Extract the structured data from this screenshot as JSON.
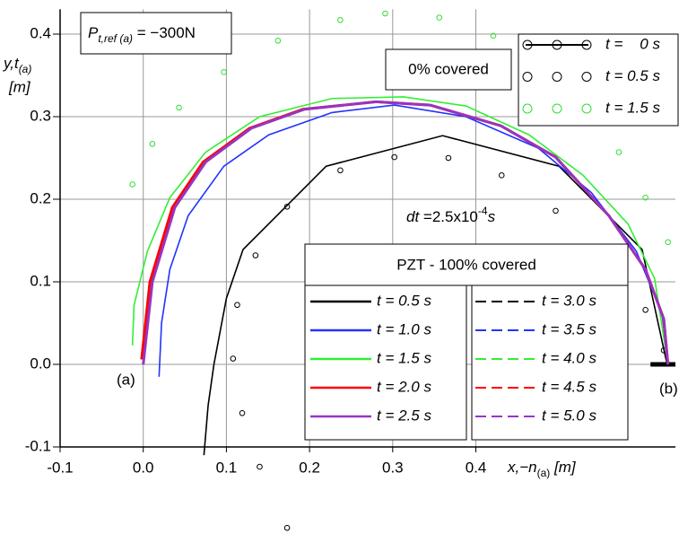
{
  "chart_data": {
    "type": "line",
    "annotation": {
      "main": "P",
      "sub": "t,ref (a)",
      "rest": " = −300N"
    },
    "dt_annotation": {
      "main": "dt",
      "rest": " =2.5x10",
      "sup": "-4",
      "unit": "s"
    },
    "x_label": {
      "main": "x,−n",
      "sub": "(a)",
      "unit": " [m]"
    },
    "y_label": {
      "main": "y,t",
      "sub": "(a)",
      "unit": "[m]"
    },
    "point_labels": [
      "(a)",
      "(b)"
    ],
    "xlim": [
      -0.1,
      0.64
    ],
    "ylim": [
      -0.1,
      0.43
    ],
    "xticks": [
      -0.1,
      {
        "value": 0,
        "label": "0.0"
      },
      0.1,
      0.2,
      0.3,
      0.4
    ],
    "yticks": [
      -0.1,
      {
        "value": 0,
        "label": "0.0"
      },
      0.1,
      0.2,
      0.3,
      0.4
    ],
    "grid": true,
    "series_groups": [
      {
        "title": "0% covered",
        "series": [
          {
            "name": "t =    0 s",
            "color": "#000000",
            "style": "line+markers",
            "x": [
              0.61,
              0.625,
              0.64
            ],
            "y": [
              0,
              0,
              0
            ]
          },
          {
            "name": "t = 0.5 s",
            "color": "#000000",
            "style": "markers",
            "x": [
              0.173,
              0.14,
              0.119,
              0.108,
              0.113,
              0.135,
              0.173,
              0.237,
              0.302,
              0.367,
              0.431,
              0.496,
              0.561,
              0.604,
              0.626
            ],
            "y": [
              -0.198,
              -0.124,
              -0.059,
              0.007,
              0.072,
              0.132,
              0.191,
              0.235,
              0.251,
              0.25,
              0.229,
              0.186,
              0.126,
              0.066,
              0.017
            ]
          },
          {
            "name": "t = 1.5 s",
            "color": "#33dd33",
            "style": "markers",
            "x": [
              -0.013,
              0.011,
              0.043,
              0.097,
              0.162,
              0.237,
              0.291,
              0.356,
              0.421,
              0.475,
              0.529,
              0.572,
              0.604,
              0.631
            ],
            "y": [
              0.218,
              0.267,
              0.311,
              0.354,
              0.392,
              0.417,
              0.425,
              0.42,
              0.398,
              0.365,
              0.316,
              0.257,
              0.202,
              0.148
            ]
          }
        ]
      },
      {
        "title": "PZT - 100% covered",
        "series": [
          {
            "name": "t = 0.5 s",
            "color": "#000000",
            "style": "line",
            "x": [
              0.073,
              0.078,
              0.085,
              0.1,
              0.12,
              0.22,
              0.36,
              0.5,
              0.6,
              0.63
            ],
            "y": [
              -0.11,
              -0.05,
              0,
              0.08,
              0.139,
              0.24,
              0.277,
              0.24,
              0.139,
              0
            ]
          },
          {
            "name": "t = 1.0 s",
            "color": "#2233ff",
            "style": "line",
            "x": [
              0.019,
              0.022,
              0.032,
              0.054,
              0.097,
              0.151,
              0.227,
              0.302,
              0.388,
              0.475,
              0.539,
              0.593,
              0.624,
              0.631
            ],
            "y": [
              -0.015,
              0.05,
              0.115,
              0.18,
              0.24,
              0.278,
              0.305,
              0.314,
              0.3,
              0.262,
              0.208,
              0.137,
              0.061,
              0
            ]
          },
          {
            "name": "t = 1.5 s",
            "color": "#33ee33",
            "style": "line",
            "x": [
              -0.013,
              -0.011,
              0.005,
              0.032,
              0.075,
              0.14,
              0.227,
              0.313,
              0.388,
              0.464,
              0.529,
              0.583,
              0.615,
              0.631
            ],
            "y": [
              0.023,
              0.072,
              0.137,
              0.202,
              0.257,
              0.3,
              0.322,
              0.324,
              0.313,
              0.278,
              0.229,
              0.17,
              0.104,
              0
            ]
          },
          {
            "name": "t = 2.0 s",
            "color": "#ff0000",
            "style": "line",
            "x": [
              -0.002,
              0.008,
              0.035,
              0.072,
              0.128,
              0.192,
              0.28,
              0.345,
              0.43,
              0.496,
              0.56,
              0.604,
              0.626,
              0.631
            ],
            "y": [
              0.006,
              0.1,
              0.19,
              0.245,
              0.286,
              0.309,
              0.318,
              0.314,
              0.289,
              0.251,
              0.18,
              0.115,
              0.055,
              0
            ]
          },
          {
            "name": "t = 2.5 s",
            "color": "#9933cc",
            "style": "line",
            "x": [
              0,
              0.011,
              0.038,
              0.075,
              0.13,
              0.194,
              0.28,
              0.345,
              0.43,
              0.496,
              0.56,
              0.604,
              0.626,
              0.631
            ],
            "y": [
              0,
              0.1,
              0.19,
              0.245,
              0.286,
              0.309,
              0.318,
              0.314,
              0.289,
              0.251,
              0.18,
              0.115,
              0.055,
              0
            ]
          },
          {
            "name": "t = 3.0 s",
            "color": "#000000",
            "style": "dashed",
            "x": [
              0,
              0.011,
              0.038,
              0.075,
              0.13,
              0.194,
              0.28,
              0.345,
              0.43,
              0.496,
              0.56,
              0.604,
              0.626,
              0.631
            ],
            "y": [
              0,
              0.1,
              0.19,
              0.245,
              0.286,
              0.309,
              0.318,
              0.314,
              0.289,
              0.251,
              0.18,
              0.115,
              0.055,
              0
            ]
          },
          {
            "name": "t = 3.5 s",
            "color": "#2233ff",
            "style": "dashed",
            "x": [
              0,
              0.011,
              0.038,
              0.075,
              0.13,
              0.194,
              0.28,
              0.345,
              0.43,
              0.496,
              0.56,
              0.604,
              0.626,
              0.631
            ],
            "y": [
              0,
              0.1,
              0.19,
              0.245,
              0.286,
              0.309,
              0.318,
              0.314,
              0.289,
              0.251,
              0.18,
              0.115,
              0.055,
              0
            ]
          },
          {
            "name": "t = 4.0 s",
            "color": "#33ee33",
            "style": "dashed",
            "x": [
              0,
              0.011,
              0.038,
              0.075,
              0.13,
              0.194,
              0.28,
              0.345,
              0.43,
              0.496,
              0.56,
              0.604,
              0.626,
              0.631
            ],
            "y": [
              0,
              0.1,
              0.19,
              0.245,
              0.286,
              0.309,
              0.318,
              0.314,
              0.289,
              0.251,
              0.18,
              0.115,
              0.055,
              0
            ]
          },
          {
            "name": "t = 4.5 s",
            "color": "#ff0000",
            "style": "dashed",
            "x": [
              0,
              0.011,
              0.038,
              0.075,
              0.13,
              0.194,
              0.28,
              0.345,
              0.43,
              0.496,
              0.56,
              0.604,
              0.626,
              0.631
            ],
            "y": [
              0,
              0.1,
              0.19,
              0.245,
              0.286,
              0.309,
              0.318,
              0.314,
              0.289,
              0.251,
              0.18,
              0.115,
              0.055,
              0
            ]
          },
          {
            "name": "t = 5.0 s",
            "color": "#9933cc",
            "style": "dashed",
            "x": [
              0,
              0.011,
              0.038,
              0.075,
              0.13,
              0.194,
              0.28,
              0.345,
              0.43,
              0.496,
              0.56,
              0.604,
              0.626,
              0.631
            ],
            "y": [
              0,
              0.1,
              0.19,
              0.245,
              0.286,
              0.309,
              0.318,
              0.314,
              0.289,
              0.251,
              0.18,
              0.115,
              0.055,
              0
            ]
          }
        ]
      }
    ]
  }
}
